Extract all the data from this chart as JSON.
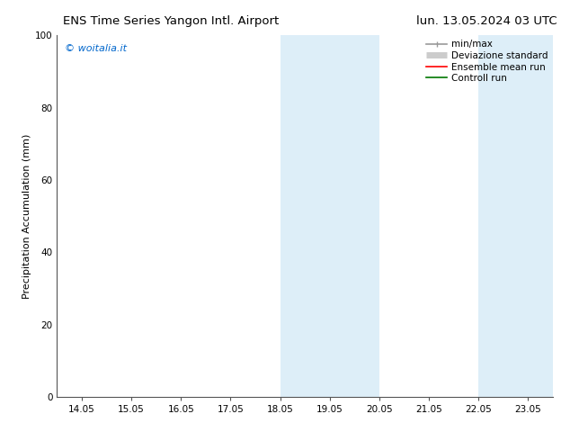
{
  "title_left": "ENS Time Series Yangon Intl. Airport",
  "title_right": "lun. 13.05.2024 03 UTC",
  "ylabel": "Precipitation Accumulation (mm)",
  "ylim": [
    0,
    100
  ],
  "yticks": [
    0,
    20,
    40,
    60,
    80,
    100
  ],
  "watermark": "© woitalia.it",
  "watermark_color": "#0066cc",
  "background_color": "#ffffff",
  "plot_bg_color": "#ffffff",
  "shaded_regions": [
    {
      "xstart": 5.0,
      "xend": 7.0,
      "color": "#ddeef8"
    },
    {
      "xstart": 9.0,
      "xend": 10.5,
      "color": "#ddeef8"
    }
  ],
  "x_tick_labels": [
    "14.05",
    "15.05",
    "16.05",
    "17.05",
    "18.05",
    "19.05",
    "20.05",
    "21.05",
    "22.05",
    "23.05"
  ],
  "x_tick_positions": [
    1,
    2,
    3,
    4,
    5,
    6,
    7,
    8,
    9,
    10
  ],
  "xlim": [
    0.5,
    10.5
  ],
  "legend_entries": [
    {
      "label": "min/max",
      "color": "#999999",
      "lw": 1.2,
      "style": "line_with_cap"
    },
    {
      "label": "Deviazione standard",
      "color": "#cccccc",
      "lw": 5,
      "style": "line_thick"
    },
    {
      "label": "Ensemble mean run",
      "color": "#ff0000",
      "lw": 1.2,
      "style": "line"
    },
    {
      "label": "Controll run",
      "color": "#007700",
      "lw": 1.2,
      "style": "line"
    }
  ],
  "title_fontsize": 9.5,
  "ylabel_fontsize": 8,
  "tick_fontsize": 7.5,
  "legend_fontsize": 7.5,
  "watermark_fontsize": 8
}
